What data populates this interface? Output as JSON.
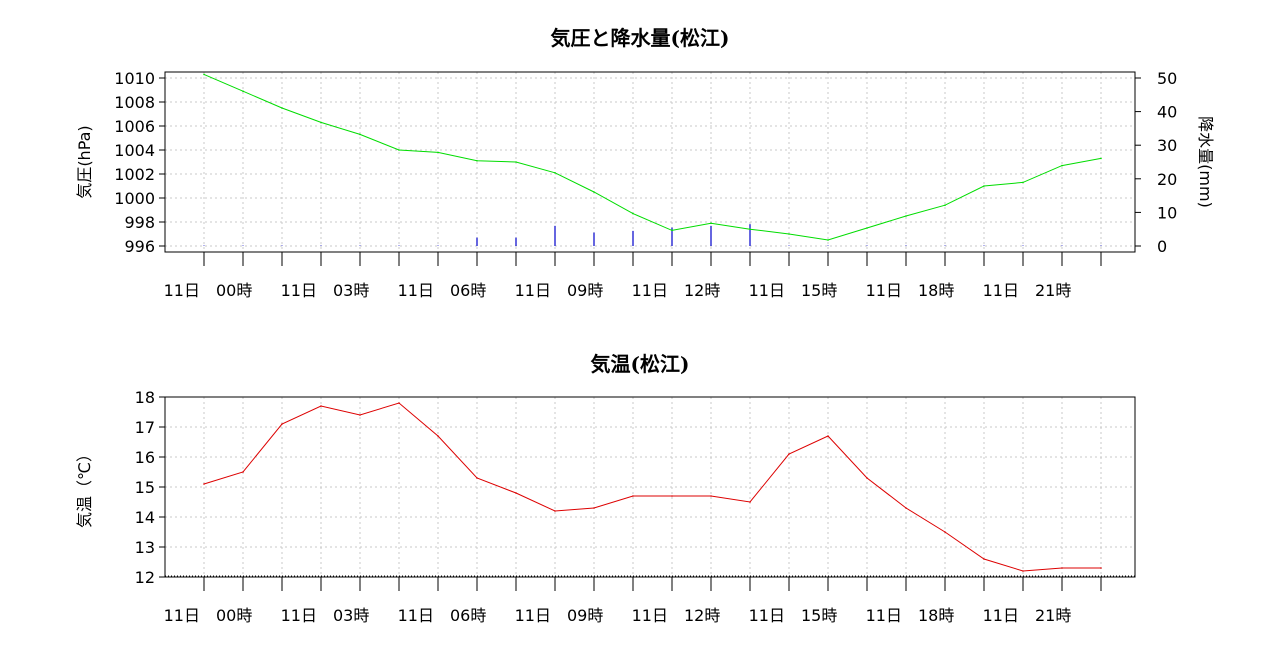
{
  "chart_data": [
    {
      "type": "line",
      "title": "気圧と降水量(松江)",
      "ylabel": "気圧(hPa)",
      "y2label": "降水量(mm)",
      "x": [
        "00",
        "01",
        "02",
        "03",
        "04",
        "05",
        "06",
        "07",
        "08",
        "09",
        "10",
        "11",
        "12",
        "13",
        "14",
        "15",
        "16",
        "17",
        "18",
        "19",
        "20",
        "21",
        "22",
        "23"
      ],
      "x_tick_labels": [
        "11日　00時",
        "11日　03時",
        "11日　06時",
        "11日　09時",
        "11日　12時",
        "11日　15時",
        "11日　18時",
        "11日　21時"
      ],
      "ylim": [
        996,
        1010
      ],
      "yticks": [
        996,
        998,
        1000,
        1002,
        1004,
        1006,
        1008,
        1010
      ],
      "y2lim": [
        0,
        50
      ],
      "y2ticks": [
        0,
        10,
        20,
        30,
        40,
        50
      ],
      "grid": true,
      "series": [
        {
          "axis": "left",
          "kind": "line",
          "color": "#00dd00",
          "values": [
            1010.3,
            1008.9,
            1007.5,
            1006.3,
            1005.3,
            1004.0,
            1003.8,
            1003.1,
            1003.0,
            1002.1,
            1000.5,
            998.7,
            997.3,
            997.9,
            997.4,
            997.0,
            996.5,
            997.5,
            998.5,
            999.4,
            1001.0,
            1001.3,
            1002.7,
            1003.3
          ]
        },
        {
          "axis": "right",
          "kind": "bar",
          "color": "#0000cc",
          "values": [
            0,
            0,
            0,
            0,
            0,
            0,
            0,
            2.5,
            2.5,
            6,
            4,
            4.5,
            5.5,
            6,
            6.5,
            0,
            0,
            0,
            0,
            0,
            0,
            0,
            0,
            0
          ]
        }
      ]
    },
    {
      "type": "line",
      "title": "気温(松江)",
      "ylabel": "気温（℃）",
      "x": [
        "00",
        "01",
        "02",
        "03",
        "04",
        "05",
        "06",
        "07",
        "08",
        "09",
        "10",
        "11",
        "12",
        "13",
        "14",
        "15",
        "16",
        "17",
        "18",
        "19",
        "20",
        "21",
        "22",
        "23"
      ],
      "x_tick_labels": [
        "11日　00時",
        "11日　03時",
        "11日　06時",
        "11日　09時",
        "11日　12時",
        "11日　15時",
        "11日　18時",
        "11日　21時"
      ],
      "ylim": [
        12,
        18
      ],
      "yticks": [
        12,
        13,
        14,
        15,
        16,
        17,
        18
      ],
      "grid": true,
      "series": [
        {
          "axis": "left",
          "kind": "line",
          "color": "#dd0000",
          "values": [
            15.1,
            15.5,
            17.1,
            17.7,
            17.4,
            17.8,
            16.7,
            15.3,
            14.8,
            14.2,
            14.3,
            14.7,
            14.7,
            14.7,
            14.5,
            16.1,
            16.7,
            15.3,
            14.3,
            13.5,
            12.6,
            12.2,
            12.3,
            12.3
          ]
        }
      ]
    }
  ]
}
